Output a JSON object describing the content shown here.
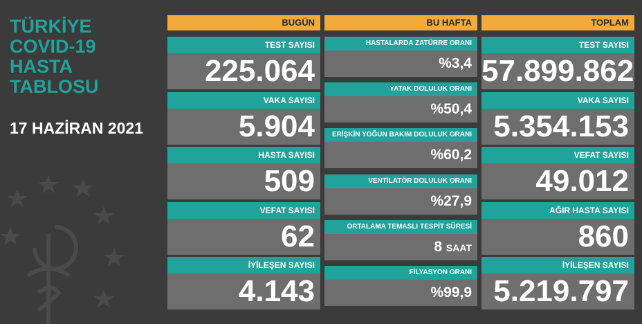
{
  "title_lines": [
    "TÜRKİYE",
    "COVID-19",
    "HASTA",
    "TABLOSU"
  ],
  "date": "17 HAZİRAN 2021",
  "columns": {
    "today": {
      "header": "BUGÜN",
      "cards": [
        {
          "label": "TEST SAYISI",
          "value": "225.064"
        },
        {
          "label": "VAKA SAYISI",
          "value": "5.904"
        },
        {
          "label": "HASTA SAYISI",
          "value": "509"
        },
        {
          "label": "VEFAT SAYISI",
          "value": "62"
        },
        {
          "label": "İYİLEŞEN SAYISI",
          "value": "4.143"
        }
      ]
    },
    "week": {
      "header": "BU HAFTA",
      "cards": [
        {
          "label": "HASTALARDA ZATÜRRE ORANI",
          "value": "%3,4"
        },
        {
          "label": "YATAK DOLULUK ORANI",
          "value": "%50,4"
        },
        {
          "label": "ERİŞKİN YOĞUN BAKIM DOLULUK ORANI",
          "value": "%60,2"
        },
        {
          "label": "VENTİLATÖR DOLULUK ORANI",
          "value": "%27,9"
        },
        {
          "label": "ORTALAMA TEMASLI TESPİT SÜRESİ",
          "value": "8",
          "unit": "SAAT"
        },
        {
          "label": "FİLYASYON ORANI",
          "value": "%99,9"
        }
      ]
    },
    "total": {
      "header": "TOPLAM",
      "cards": [
        {
          "label": "TEST SAYISI",
          "value": "57.899.862"
        },
        {
          "label": "VAKA SAYISI",
          "value": "5.354.153"
        },
        {
          "label": "VEFAT SAYISI",
          "value": "49.012"
        },
        {
          "label": "AĞIR HASTA SAYISI",
          "value": "860"
        },
        {
          "label": "İYİLEŞEN SAYISI",
          "value": "5.219.797"
        }
      ]
    }
  },
  "colors": {
    "background": "#3b3b3b",
    "accent_teal": "#1fa39b",
    "header_orange": "#f4aa3a",
    "value_gray": "#6e6e6e"
  },
  "icons": [
    "health-ministry-emblem-icon"
  ]
}
